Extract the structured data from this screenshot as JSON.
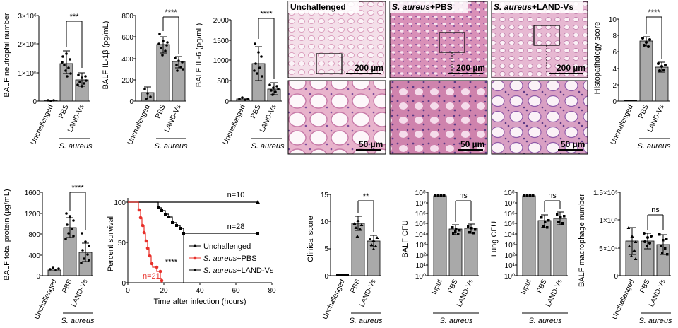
{
  "colors": {
    "bar_fill": "#a9a9a9",
    "pbs_series": "#e8302a",
    "unchallenged_series": "#000000",
    "land_series": "#000000",
    "tissue_pink": "#e8b3cc",
    "tissue_purple": "#7a4a9a"
  },
  "group_label": "S. aureus",
  "micrographs": {
    "panels": [
      {
        "caption": "Unchallenged",
        "scale_top": "200 µm",
        "scale_bottom": "50 µm"
      },
      {
        "caption_italic": "S. aureus",
        "caption_rest": "+PBS",
        "scale_top": "200 µm",
        "scale_bottom": "50 µm"
      },
      {
        "caption_italic": "S. aureus",
        "caption_rest": "+LAND-Vs",
        "scale_top": "200 µm",
        "scale_bottom": "50 µm"
      }
    ]
  },
  "survival_legend": [
    {
      "marker": "triangle",
      "label": "Unchallenged"
    },
    {
      "marker": "circle",
      "label_italic": "S. aureus",
      "label_rest": "+PBS"
    },
    {
      "marker": "square",
      "label_italic": "S. aureus",
      "label_rest": "+LAND-Vs"
    }
  ],
  "chart_data": [
    {
      "type": "bar",
      "ylabel": "BALF neutrophil number",
      "yticks": [
        "0",
        "1×10⁶",
        "2×10⁶",
        "3×10⁶"
      ],
      "ylim": [
        0,
        3000000
      ],
      "categories": [
        "Unchallenged",
        "PBS",
        "LAND-Vs"
      ],
      "values": [
        10000,
        1300000,
        750000
      ],
      "significance": "***"
    },
    {
      "type": "bar",
      "ylabel": "BALF IL-1β (pg/mL)",
      "yticks": [
        "0",
        "200",
        "400",
        "600",
        "800"
      ],
      "ylim": [
        0,
        800
      ],
      "categories": [
        "Unchallenged",
        "PBS",
        "LAND-Vs"
      ],
      "values": [
        80,
        530,
        370
      ],
      "significance": "****"
    },
    {
      "type": "bar",
      "ylabel": "BALF IL-6 (pg/mL)",
      "yticks": [
        "0",
        "500",
        "1000",
        "1500",
        "2000"
      ],
      "ylim": [
        0,
        2000
      ],
      "categories": [
        "Unchallenged",
        "PBS",
        "LAND-Vs"
      ],
      "values": [
        50,
        920,
        300
      ],
      "significance": "****"
    },
    {
      "type": "bar",
      "ylabel": "Histopathology score",
      "yticks": [
        "0",
        "2",
        "4",
        "6",
        "8",
        "10"
      ],
      "ylim": [
        0,
        10
      ],
      "categories": [
        "Unchallenged",
        "PBS",
        "LAND-Vs"
      ],
      "values": [
        0,
        7.3,
        4.1
      ],
      "significance": "****"
    },
    {
      "type": "bar",
      "ylabel": "BALF total protein (µg/mL)",
      "yticks": [
        "0",
        "400",
        "800",
        "1200",
        "1600"
      ],
      "ylim": [
        0,
        1600
      ],
      "categories": [
        "Unchallenged",
        "PBS",
        "LAND-Vs"
      ],
      "values": [
        110,
        920,
        450
      ],
      "significance": "****"
    },
    {
      "type": "line",
      "title": "",
      "xlabel": "Time after infection (hours)",
      "ylabel": "Percent survival",
      "xticks": [
        "0",
        "20",
        "40",
        "60",
        "80"
      ],
      "xlim": [
        0,
        80
      ],
      "yticks": [
        "0",
        "50",
        "100"
      ],
      "ylim": [
        0,
        100
      ],
      "series": [
        {
          "name": "Unchallenged",
          "x": [
            0,
            72
          ],
          "y": [
            100,
            100
          ],
          "n_label": "n=10"
        },
        {
          "name": "S. aureus+PBS",
          "x": [
            0,
            6,
            7,
            8,
            9,
            10,
            11,
            12,
            13,
            14,
            15,
            16,
            18,
            19
          ],
          "y": [
            100,
            100,
            90,
            81,
            71,
            62,
            52,
            43,
            33,
            24,
            19,
            14,
            5,
            0
          ],
          "n_label": "n=21"
        },
        {
          "name": "S. aureus+LAND-Vs",
          "x": [
            0,
            17,
            18,
            19,
            20,
            21,
            22,
            23,
            24,
            25,
            72
          ],
          "y": [
            100,
            100,
            93,
            89,
            86,
            82,
            75,
            71,
            68,
            61,
            61
          ],
          "n_label": "n=28"
        }
      ],
      "significance": "****"
    },
    {
      "type": "bar",
      "ylabel": "Clinical score",
      "yticks": [
        "0",
        "5",
        "10",
        "15"
      ],
      "ylim": [
        0,
        15
      ],
      "categories": [
        "Unchallenged",
        "PBS",
        "LAND-Vs"
      ],
      "values": [
        0,
        9.7,
        6.4
      ],
      "significance": "**"
    },
    {
      "type": "bar",
      "ylabel": "BALF CFU",
      "scale": "log",
      "yticks": [
        "10⁰",
        "10¹",
        "10²",
        "10³",
        "10⁴",
        "10⁵",
        "10⁶",
        "10⁷",
        "10⁸"
      ],
      "ylim": [
        1,
        100000000
      ],
      "categories": [
        "Input",
        "PBS",
        "LAND-Vs"
      ],
      "values": [
        50000000,
        30000,
        35000
      ],
      "significance": "ns"
    },
    {
      "type": "bar",
      "ylabel": "Lung CFU",
      "scale": "log",
      "yticks": [
        "10⁰",
        "10¹",
        "10²",
        "10³",
        "10⁴",
        "10⁵",
        "10⁶",
        "10⁷",
        "10⁸"
      ],
      "ylim": [
        1,
        100000000
      ],
      "categories": [
        "Input",
        "PBS",
        "LAND-Vs"
      ],
      "values": [
        50000000,
        200000,
        300000
      ],
      "significance": "ns"
    },
    {
      "type": "bar",
      "ylabel": "BALF macrophage number",
      "yticks": [
        "0",
        "5×10⁴",
        "1×10⁵",
        "1.5×10⁵"
      ],
      "ylim": [
        0,
        150000
      ],
      "categories": [
        "Unchallenged",
        "PBS",
        "LAND-Vs"
      ],
      "values": [
        62000,
        62000,
        56000
      ],
      "significance": "ns"
    }
  ]
}
